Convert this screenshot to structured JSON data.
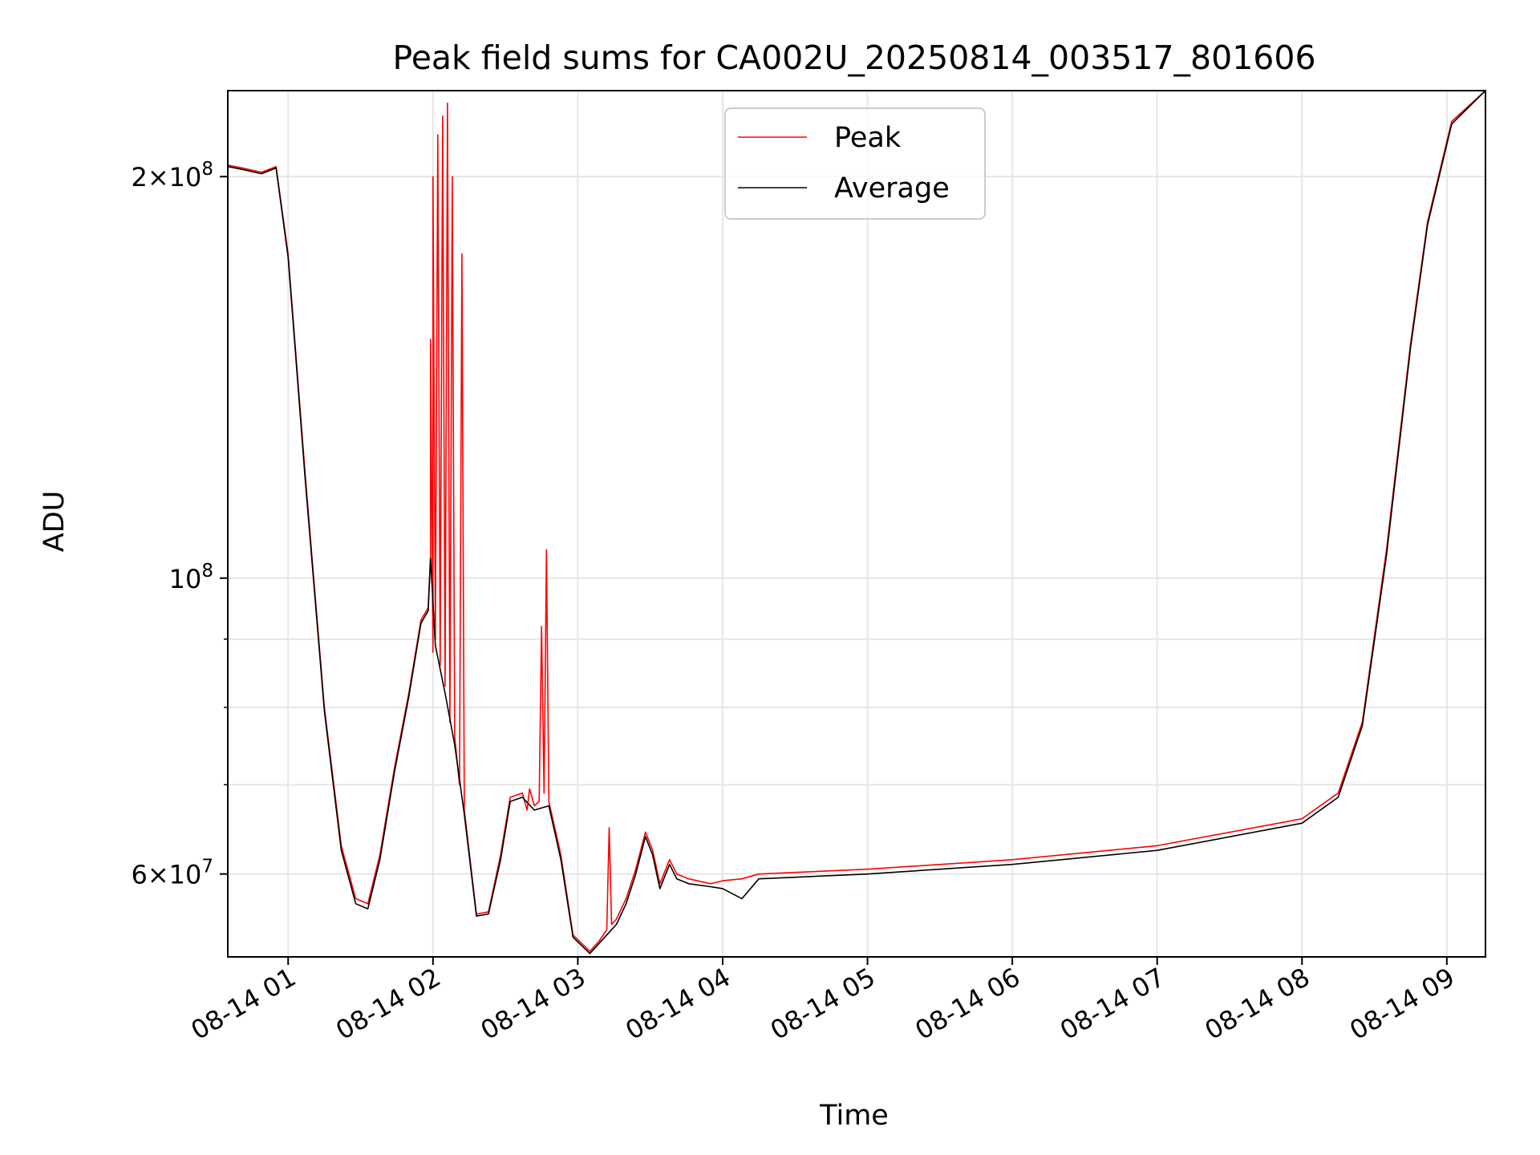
{
  "chart_data": {
    "type": "line",
    "title": "Peak field sums for CA002U_20250814_003517_801606",
    "xlabel": "Time",
    "ylabel": "ADU",
    "yscale": "log",
    "xlim": [
      "2025-08-14 00:35",
      "2025-08-14 09:16"
    ],
    "ylim": [
      52000000,
      232000000
    ],
    "grid": true,
    "legend": "upper-center",
    "x_ticks": [
      {
        "value": "2025-08-14 01:00",
        "label": "08-14 01"
      },
      {
        "value": "2025-08-14 02:00",
        "label": "08-14 02"
      },
      {
        "value": "2025-08-14 03:00",
        "label": "08-14 03"
      },
      {
        "value": "2025-08-14 04:00",
        "label": "08-14 04"
      },
      {
        "value": "2025-08-14 05:00",
        "label": "08-14 05"
      },
      {
        "value": "2025-08-14 06:00",
        "label": "08-14 06"
      },
      {
        "value": "2025-08-14 07:00",
        "label": "08-14 07"
      },
      {
        "value": "2025-08-14 08:00",
        "label": "08-14 08"
      },
      {
        "value": "2025-08-14 09:00",
        "label": "08-14 09"
      }
    ],
    "y_ticks": [
      {
        "value": 60000000,
        "mantissa": "6",
        "exponent": "7"
      },
      {
        "value": 100000000,
        "mantissa": "",
        "exponent": "8"
      },
      {
        "value": 200000000,
        "mantissa": "2",
        "exponent": "8"
      }
    ],
    "y_minor_ticks": [
      70000000,
      80000000,
      90000000
    ],
    "series": [
      {
        "name": "Peak",
        "color": "#ff0000",
        "points": [
          [
            "2025-08-14 00:35",
            204000000
          ],
          [
            "2025-08-14 00:41",
            203000000
          ],
          [
            "2025-08-14 00:49",
            201500000
          ],
          [
            "2025-08-14 00:55",
            203500000
          ],
          [
            "2025-08-14 01:00",
            175000000
          ],
          [
            "2025-08-14 01:07",
            120000000
          ],
          [
            "2025-08-14 01:15",
            80000000
          ],
          [
            "2025-08-14 01:22",
            63000000
          ],
          [
            "2025-08-14 01:28",
            57500000
          ],
          [
            "2025-08-14 01:33",
            57000000
          ],
          [
            "2025-08-14 01:38",
            62000000
          ],
          [
            "2025-08-14 01:44",
            72000000
          ],
          [
            "2025-08-14 01:50",
            82000000
          ],
          [
            "2025-08-14 01:55",
            93000000
          ],
          [
            "2025-08-14 01:58",
            95000000
          ],
          [
            "2025-08-14 01:59",
            104000000
          ],
          [
            "2025-08-14 01:59",
            151000000
          ],
          [
            "2025-08-14 02:00",
            88000000
          ],
          [
            "2025-08-14 02:00",
            200000000
          ],
          [
            "2025-08-14 02:01",
            90000000
          ],
          [
            "2025-08-14 02:02",
            215000000
          ],
          [
            "2025-08-14 02:03",
            86000000
          ],
          [
            "2025-08-14 02:04",
            222000000
          ],
          [
            "2025-08-14 02:05",
            83000000
          ],
          [
            "2025-08-14 02:06",
            227000000
          ],
          [
            "2025-08-14 02:07",
            78000000
          ],
          [
            "2025-08-14 02:08",
            200000000
          ],
          [
            "2025-08-14 02:09",
            76000000
          ],
          [
            "2025-08-14 02:11",
            70000000
          ],
          [
            "2025-08-14 02:12",
            175000000
          ],
          [
            "2025-08-14 02:13",
            67000000
          ],
          [
            "2025-08-14 02:18",
            56000000
          ],
          [
            "2025-08-14 02:23",
            56200000
          ],
          [
            "2025-08-14 02:28",
            62000000
          ],
          [
            "2025-08-14 02:32",
            68500000
          ],
          [
            "2025-08-14 02:37",
            69000000
          ],
          [
            "2025-08-14 02:39",
            67000000
          ],
          [
            "2025-08-14 02:40",
            69500000
          ],
          [
            "2025-08-14 02:42",
            67500000
          ],
          [
            "2025-08-14 02:44",
            68000000
          ],
          [
            "2025-08-14 02:45",
            92000000
          ],
          [
            "2025-08-14 02:46",
            69000000
          ],
          [
            "2025-08-14 02:47",
            105000000
          ],
          [
            "2025-08-14 02:48",
            68000000
          ],
          [
            "2025-08-14 02:53",
            62000000
          ],
          [
            "2025-08-14 02:58",
            54000000
          ],
          [
            "2025-08-14 03:05",
            52500000
          ],
          [
            "2025-08-14 03:09",
            53500000
          ],
          [
            "2025-08-14 03:12",
            54500000
          ],
          [
            "2025-08-14 03:13",
            65000000
          ],
          [
            "2025-08-14 03:14",
            55000000
          ],
          [
            "2025-08-14 03:16",
            55500000
          ],
          [
            "2025-08-14 03:20",
            57500000
          ],
          [
            "2025-08-14 03:24",
            60500000
          ],
          [
            "2025-08-14 03:28",
            64500000
          ],
          [
            "2025-08-14 03:31",
            62500000
          ],
          [
            "2025-08-14 03:34",
            59000000
          ],
          [
            "2025-08-14 03:38",
            61500000
          ],
          [
            "2025-08-14 03:41",
            60000000
          ],
          [
            "2025-08-14 03:46",
            59500000
          ],
          [
            "2025-08-14 03:55",
            59000000
          ],
          [
            "2025-08-14 04:00",
            59300000
          ],
          [
            "2025-08-14 04:08",
            59500000
          ],
          [
            "2025-08-14 04:15",
            60000000
          ],
          [
            "2025-08-14 05:00",
            60500000
          ],
          [
            "2025-08-14 06:00",
            61500000
          ],
          [
            "2025-08-14 07:00",
            63000000
          ],
          [
            "2025-08-14 08:00",
            66000000
          ],
          [
            "2025-08-14 08:15",
            69000000
          ],
          [
            "2025-08-14 08:25",
            78000000
          ],
          [
            "2025-08-14 08:35",
            105000000
          ],
          [
            "2025-08-14 08:45",
            150000000
          ],
          [
            "2025-08-14 08:52",
            185000000
          ],
          [
            "2025-08-14 09:02",
            220000000
          ],
          [
            "2025-08-14 09:16",
            232000000
          ]
        ]
      },
      {
        "name": "Average",
        "color": "#000000",
        "points": [
          [
            "2025-08-14 00:35",
            203500000
          ],
          [
            "2025-08-14 00:41",
            202500000
          ],
          [
            "2025-08-14 00:49",
            201000000
          ],
          [
            "2025-08-14 00:55",
            203000000
          ],
          [
            "2025-08-14 01:00",
            174000000
          ],
          [
            "2025-08-14 01:07",
            119000000
          ],
          [
            "2025-08-14 01:15",
            79500000
          ],
          [
            "2025-08-14 01:22",
            62500000
          ],
          [
            "2025-08-14 01:28",
            57000000
          ],
          [
            "2025-08-14 01:33",
            56500000
          ],
          [
            "2025-08-14 01:38",
            61500000
          ],
          [
            "2025-08-14 01:44",
            71500000
          ],
          [
            "2025-08-14 01:50",
            81500000
          ],
          [
            "2025-08-14 01:55",
            92500000
          ],
          [
            "2025-08-14 01:58",
            94500000
          ],
          [
            "2025-08-14 01:59",
            103500000
          ],
          [
            "2025-08-14 02:01",
            89000000
          ],
          [
            "2025-08-14 02:05",
            82000000
          ],
          [
            "2025-08-14 02:09",
            75000000
          ],
          [
            "2025-08-14 02:13",
            66500000
          ],
          [
            "2025-08-14 02:18",
            55800000
          ],
          [
            "2025-08-14 02:23",
            56000000
          ],
          [
            "2025-08-14 02:28",
            61500000
          ],
          [
            "2025-08-14 02:32",
            68000000
          ],
          [
            "2025-08-14 02:37",
            68500000
          ],
          [
            "2025-08-14 02:42",
            67000000
          ],
          [
            "2025-08-14 02:48",
            67500000
          ],
          [
            "2025-08-14 02:53",
            61500000
          ],
          [
            "2025-08-14 02:58",
            53800000
          ],
          [
            "2025-08-14 03:05",
            52300000
          ],
          [
            "2025-08-14 03:12",
            54000000
          ],
          [
            "2025-08-14 03:16",
            55000000
          ],
          [
            "2025-08-14 03:20",
            57000000
          ],
          [
            "2025-08-14 03:24",
            60000000
          ],
          [
            "2025-08-14 03:28",
            64000000
          ],
          [
            "2025-08-14 03:31",
            62000000
          ],
          [
            "2025-08-14 03:34",
            58500000
          ],
          [
            "2025-08-14 03:38",
            61000000
          ],
          [
            "2025-08-14 03:41",
            59500000
          ],
          [
            "2025-08-14 03:46",
            59000000
          ],
          [
            "2025-08-14 03:55",
            58700000
          ],
          [
            "2025-08-14 04:00",
            58500000
          ],
          [
            "2025-08-14 04:08",
            57500000
          ],
          [
            "2025-08-14 04:15",
            59500000
          ],
          [
            "2025-08-14 05:00",
            60000000
          ],
          [
            "2025-08-14 06:00",
            61000000
          ],
          [
            "2025-08-14 07:00",
            62500000
          ],
          [
            "2025-08-14 08:00",
            65500000
          ],
          [
            "2025-08-14 08:15",
            68500000
          ],
          [
            "2025-08-14 08:25",
            77500000
          ],
          [
            "2025-08-14 08:35",
            104000000
          ],
          [
            "2025-08-14 08:45",
            149000000
          ],
          [
            "2025-08-14 08:52",
            184000000
          ],
          [
            "2025-08-14 09:02",
            219000000
          ],
          [
            "2025-08-14 09:16",
            232000000
          ]
        ]
      }
    ]
  }
}
